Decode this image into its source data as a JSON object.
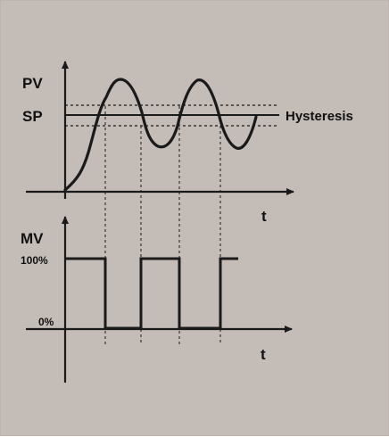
{
  "labels": {
    "pv": "PV",
    "sp": "SP",
    "hysteresis": "Hysteresis",
    "t_top": "t",
    "mv": "MV",
    "mv_100": "100%",
    "mv_0": "0%",
    "t_bottom": "t"
  },
  "colors": {
    "background": "#c4bcb6",
    "line": "#1a1a1a"
  }
}
